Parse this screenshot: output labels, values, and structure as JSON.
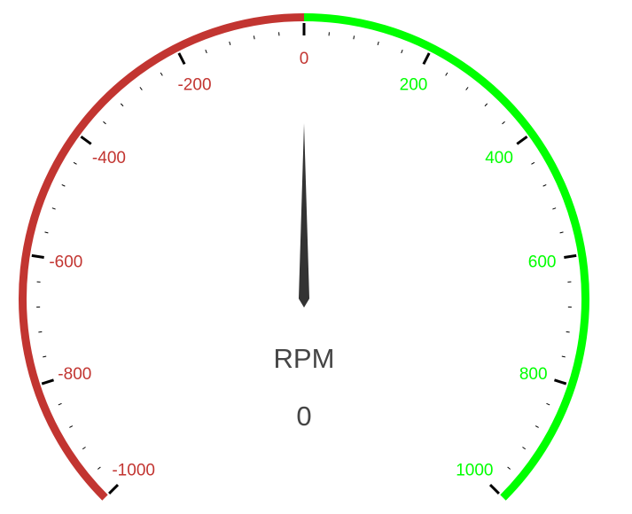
{
  "chart_data": {
    "type": "gauge",
    "title": "RPM",
    "value": 0,
    "value_label": "0",
    "min": -1000,
    "max": 1000,
    "major_interval": 200,
    "minor_interval": 40,
    "tick_labels": [
      "-1000",
      "-800",
      "-600",
      "-400",
      "-200",
      "0",
      "200",
      "400",
      "600",
      "800",
      "1000"
    ],
    "bands": [
      {
        "from": -1000,
        "to": 0,
        "color": "#c23531"
      },
      {
        "from": 0,
        "to": 1000,
        "color": "#00ff00"
      }
    ],
    "needle_color": "#333333",
    "tick_color": "#000000",
    "text_color": "#454545"
  }
}
